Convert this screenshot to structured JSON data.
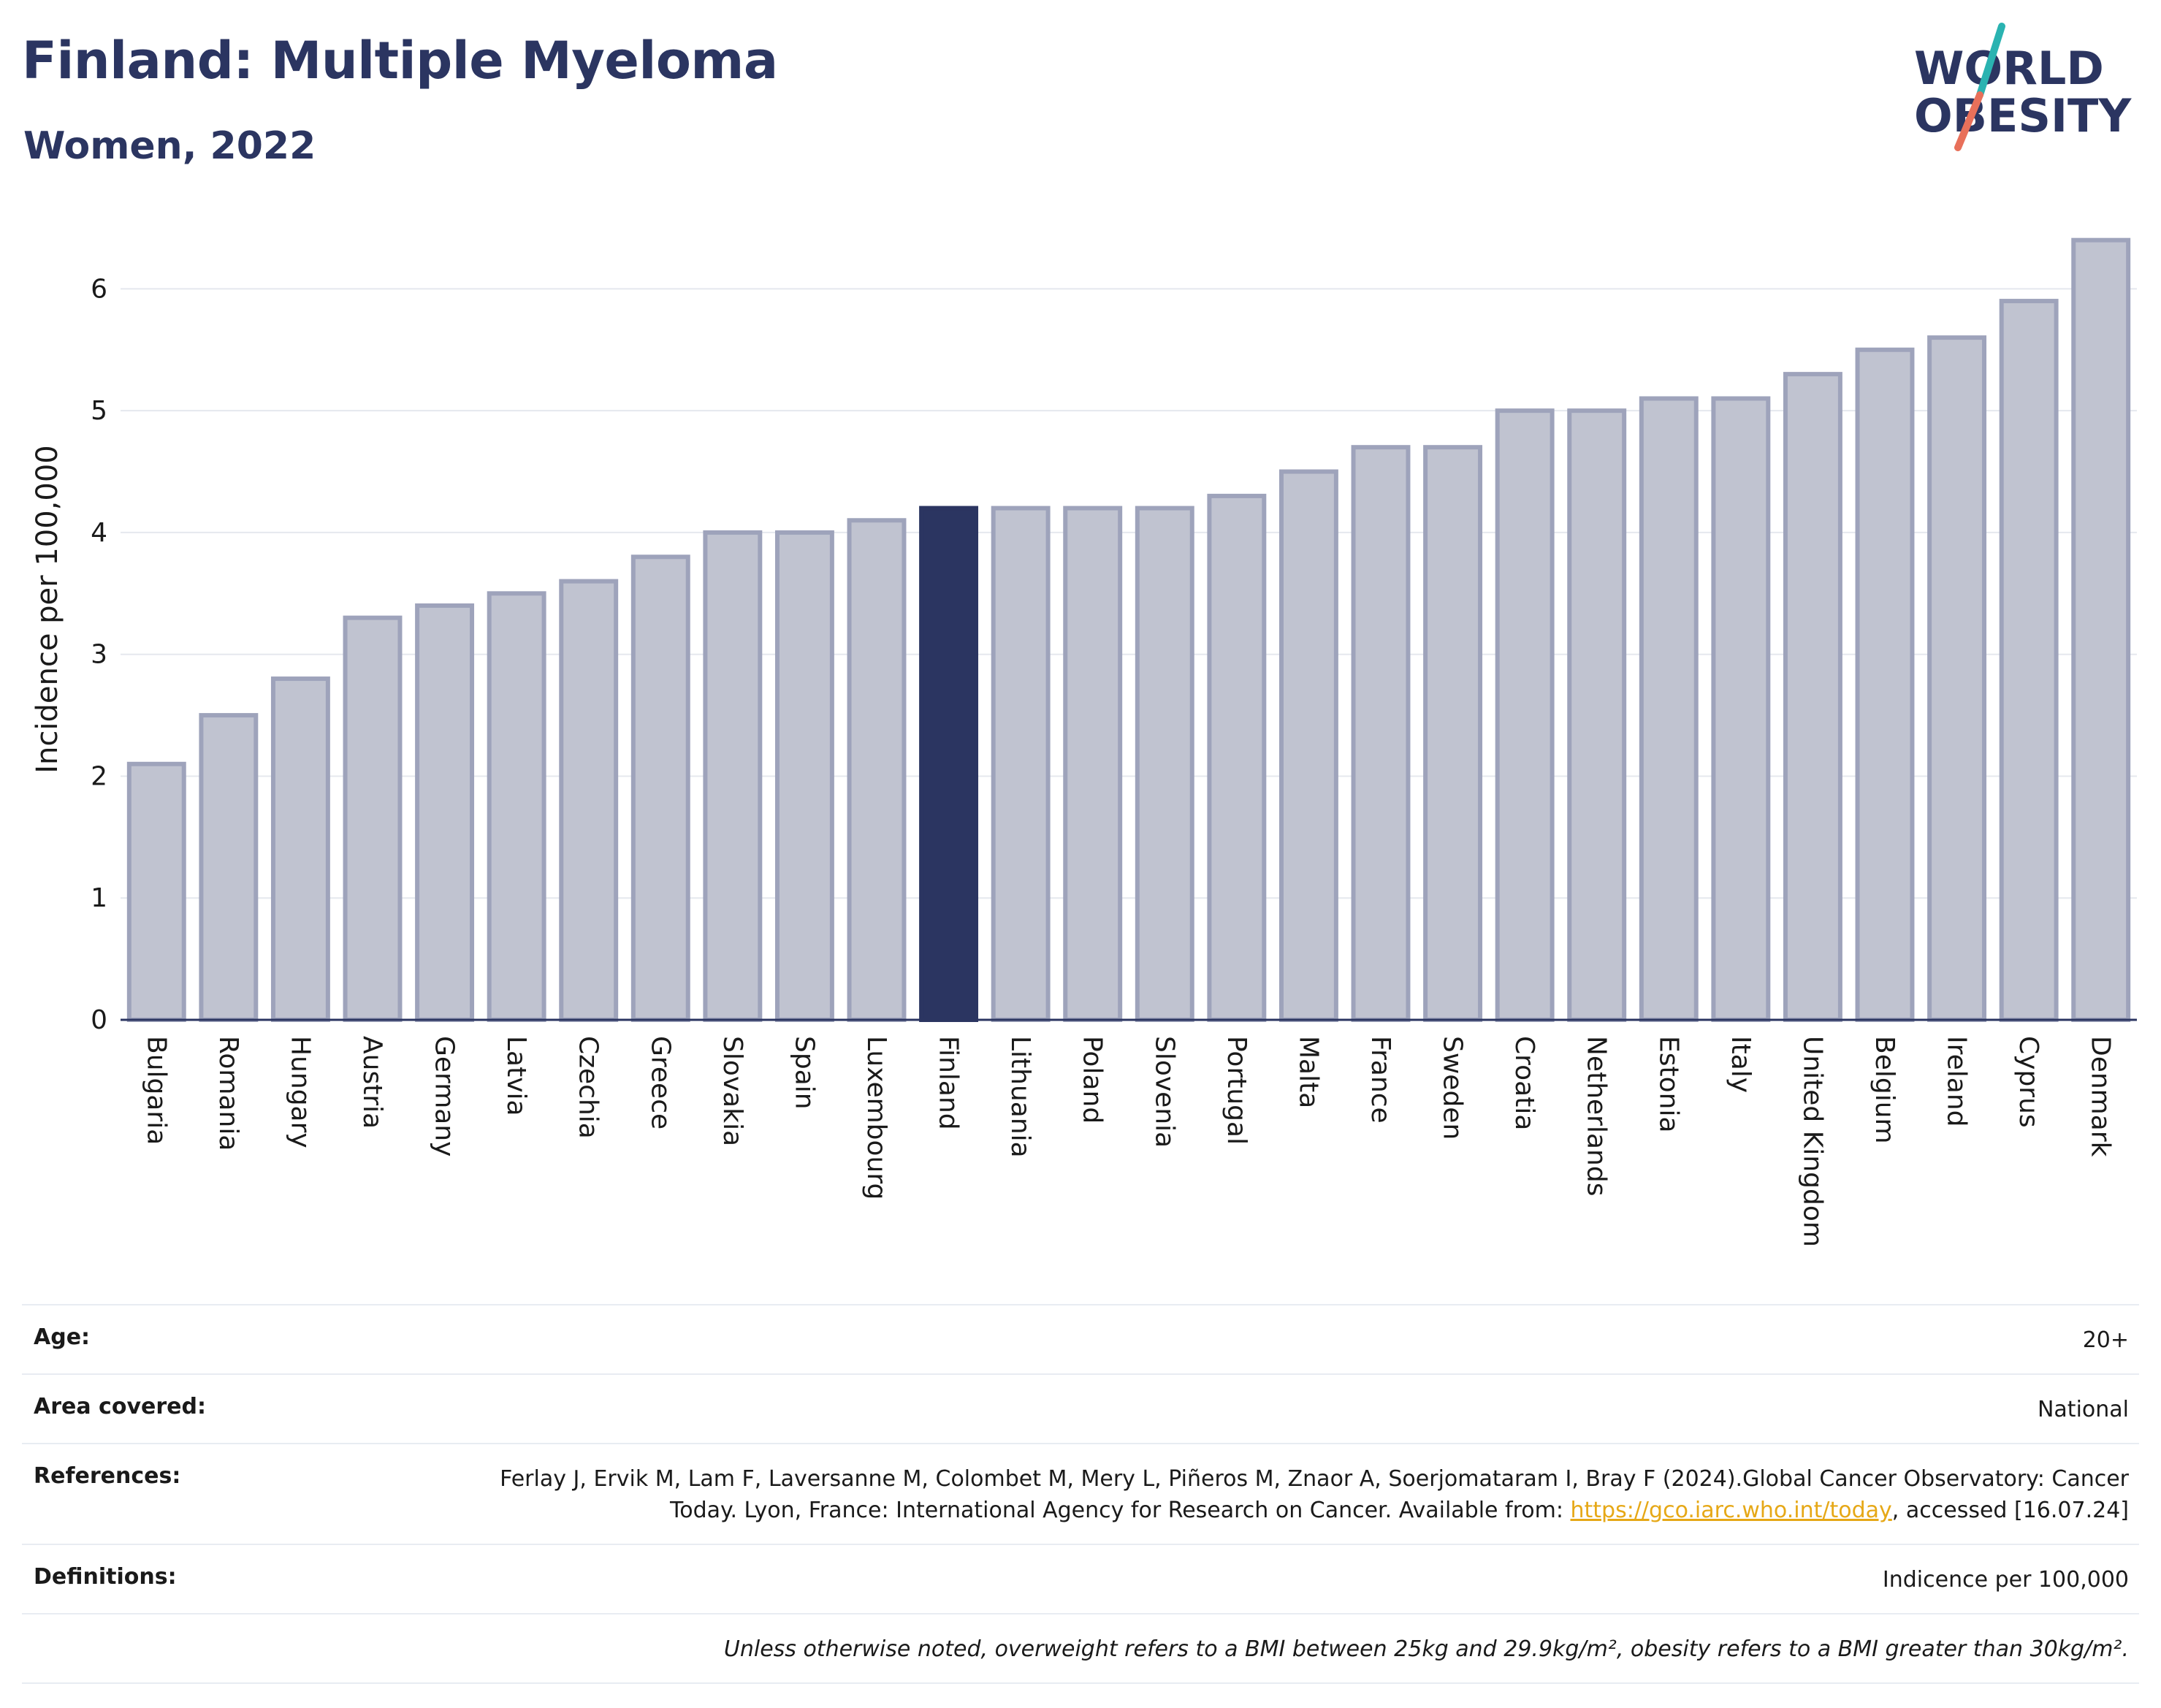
{
  "header": {
    "title": "Finland: Multiple Myeloma",
    "subtitle": "Women, 2022"
  },
  "logo": {
    "line1": "WORLD",
    "line2": "OBESITY",
    "colors": {
      "navy": "#2b3561",
      "teal": "#2ab3b1",
      "coral": "#e8705a"
    }
  },
  "chart_data": {
    "type": "bar",
    "ylabel": "Incidence per 100,000",
    "ylim": [
      0,
      6.5
    ],
    "yticks": [
      0,
      1,
      2,
      3,
      4,
      5,
      6
    ],
    "grid": true,
    "highlight": "Finland",
    "colors": {
      "bar": "#c0c3d0",
      "bar_border": "#9ea3bb",
      "highlight": "#2b3561",
      "grid": "#e5e8ee",
      "axis": "#2b3561"
    },
    "categories": [
      "Bulgaria",
      "Romania",
      "Hungary",
      "Austria",
      "Germany",
      "Latvia",
      "Czechia",
      "Greece",
      "Slovakia",
      "Spain",
      "Luxembourg",
      "Finland",
      "Lithuania",
      "Poland",
      "Slovenia",
      "Portugal",
      "Malta",
      "France",
      "Sweden",
      "Croatia",
      "Netherlands",
      "Estonia",
      "Italy",
      "United Kingdom",
      "Belgium",
      "Ireland",
      "Cyprus",
      "Denmark"
    ],
    "values": [
      2.1,
      2.5,
      2.8,
      3.3,
      3.4,
      3.5,
      3.6,
      3.8,
      4.0,
      4.0,
      4.1,
      4.2,
      4.2,
      4.2,
      4.2,
      4.3,
      4.5,
      4.7,
      4.7,
      5.0,
      5.0,
      5.1,
      5.1,
      5.3,
      5.5,
      5.6,
      5.9,
      6.4
    ]
  },
  "info": {
    "age_label": "Age:",
    "age_value": "20+",
    "area_label": "Area covered:",
    "area_value": "National",
    "references_label": "References:",
    "references_text_1": "Ferlay J, Ervik M, Lam F, Laversanne M, Colombet M, Mery L, Piñeros M, Znaor A, Soerjomataram I, Bray F (2024).Global Cancer Observatory: Cancer Today. Lyon, France: International Agency for Research on Cancer. Available from:",
    "references_link": "https://gco.iarc.who.int/today",
    "references_text_2": ", accessed [16.07.24]",
    "definitions_label": "Definitions:",
    "definitions_value": "Indicence per 100,000",
    "note": "Unless otherwise noted, overweight refers to a BMI between 25kg and 29.9kg/m², obesity refers to a BMI greater than 30kg/m²."
  }
}
